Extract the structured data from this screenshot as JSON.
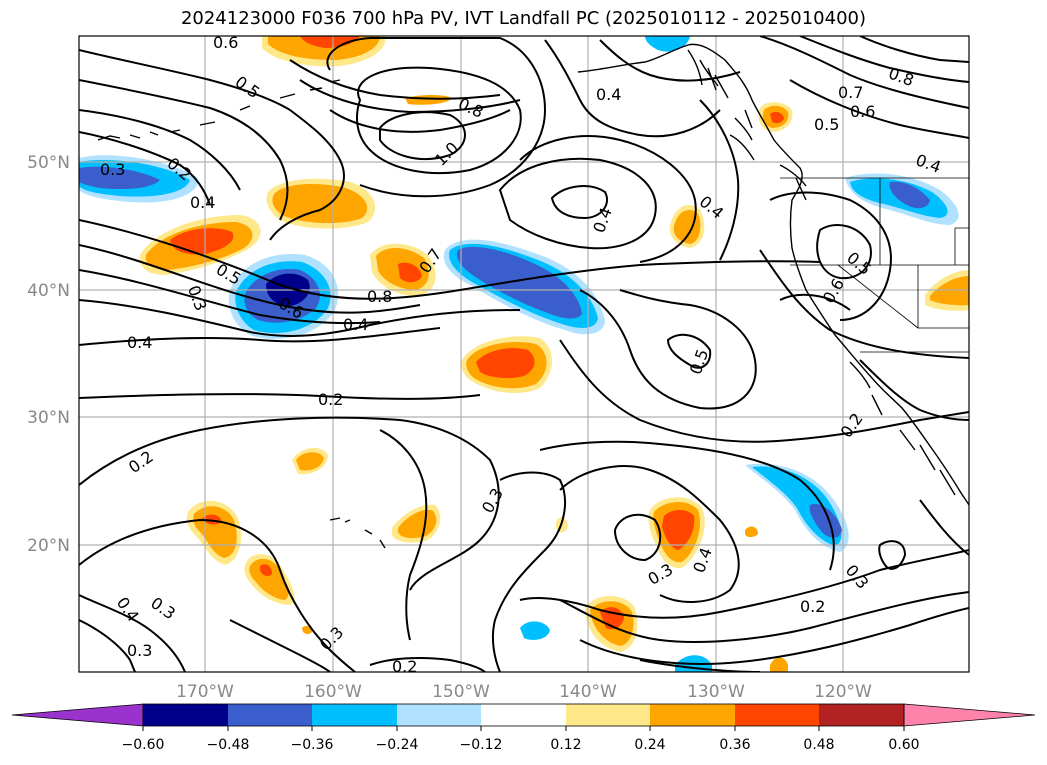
{
  "title": "2024123000 F036 700 hPa PV, IVT Landfall PC (2025010112 - 2025010400)",
  "lat_ticks": [
    "50°N",
    "40°N",
    "30°N",
    "20°N"
  ],
  "lon_ticks": [
    "170°W",
    "160°W",
    "150°W",
    "140°W",
    "130°W",
    "120°W"
  ],
  "contour_labels": [
    "0.6",
    "0.5",
    "0.3",
    "0.2",
    "0.4",
    "0.5",
    "0.6",
    "0.8",
    "0.4",
    "0.3",
    "0.4",
    "0.2",
    "0.8",
    "1.0",
    "0.7",
    "0.4",
    "0.4",
    "0.4",
    "0.5",
    "0.8",
    "0.7",
    "0.5",
    "0.6",
    "0.4",
    "0.5",
    "0.6",
    "0.2",
    "0.3",
    "0.2",
    "0.3",
    "0.3",
    "0.4",
    "0.3",
    "0.2",
    "0.3",
    "0.4",
    "0.3",
    "0.2"
  ],
  "colorbar": {
    "ticks": [
      "−0.60",
      "−0.48",
      "−0.36",
      "−0.24",
      "−0.12",
      "0.12",
      "0.24",
      "0.36",
      "0.48",
      "0.60"
    ],
    "colors": [
      "#9a32cd",
      "#00008b",
      "#3a5fcd",
      "#00bfff",
      "#b0e2ff",
      "#ffffff",
      "#ffe88a",
      "#ffa500",
      "#ff4500",
      "#b22222",
      "#ff82ab"
    ]
  },
  "palette": {
    "dark_blue": "#00008b",
    "mid_blue": "#3a5fcd",
    "sky": "#00bfff",
    "light_sky": "#b0e2ff",
    "yellow": "#ffe88a",
    "orange": "#ffa500",
    "red_orange": "#ff4500"
  }
}
